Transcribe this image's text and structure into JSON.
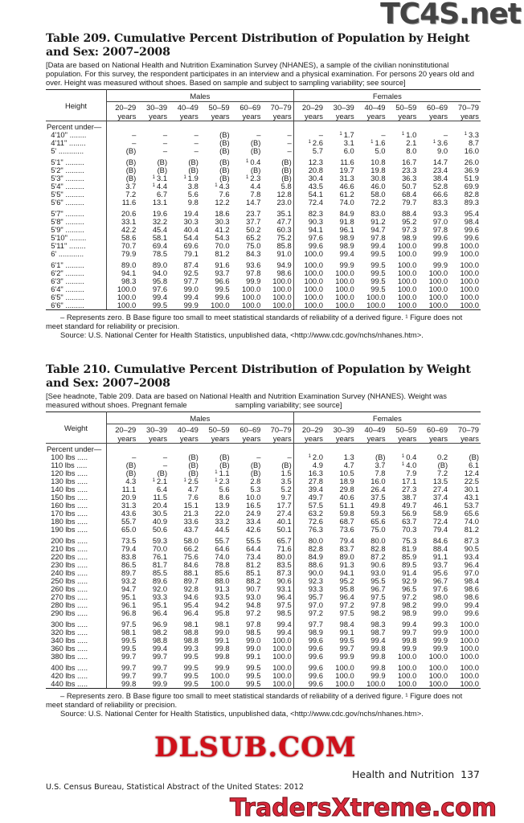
{
  "table209": {
    "title": "Table 209. Cumulative Percent Distribution of Population by Height and Sex: 2007–2008",
    "headnote": "[Data are based on National Health and Nutrition Examination Survey (NHANES), a sample of the civilian noninstitutional population. For this survey, the respondent participates in an interview and a physical examination. For persons 20 years old and over. Height was measured without shoes. Based on sample and subject to sampling variability; see source]",
    "stub_header": "Height",
    "sex_headers": [
      "Males",
      "Females"
    ],
    "age_headers": [
      "20–29",
      "30–39",
      "40–49",
      "50–59",
      "60–69",
      "70–79"
    ],
    "age_unit": "years",
    "subhead": "Percent under—",
    "groups": [
      [
        [
          "4'10\"",
          "–",
          "–",
          "–",
          "(B)",
          "–",
          "–",
          "–",
          "¹1.7",
          "–",
          "¹1.0",
          "–",
          "¹3.3"
        ],
        [
          "4'11\"",
          "–",
          "–",
          "–",
          "(B)",
          "(B)",
          "–",
          "¹2.6",
          "3.1",
          "¹1.6",
          "2.1",
          "¹3.6",
          "8.7"
        ],
        [
          "5'",
          "(B)",
          "–",
          "–",
          "(B)",
          "(B)",
          "–",
          "5.7",
          "6.0",
          "5.0",
          "8.0",
          "9.0",
          "16.0"
        ]
      ],
      [
        [
          "5'1\"",
          "(B)",
          "(B)",
          "(B)",
          "(B)",
          "¹0.4",
          "(B)",
          "12.3",
          "11.6",
          "10.8",
          "16.7",
          "14.7",
          "26.0"
        ],
        [
          "5'2\"",
          "(B)",
          "(B)",
          "(B)",
          "(B)",
          "(B)",
          "(B)",
          "20.8",
          "19.7",
          "19.8",
          "23.3",
          "23.4",
          "36.9"
        ],
        [
          "5'3\"",
          "(B)",
          "¹3.1",
          "¹1.9",
          "(B)",
          "¹2.3",
          "(B)",
          "30.4",
          "31.3",
          "30.8",
          "36.3",
          "38.4",
          "51.9"
        ],
        [
          "5'4\"",
          "3.7",
          "¹4.4",
          "3.8",
          "¹4.3",
          "4.4",
          "5.8",
          "43.5",
          "46.6",
          "46.0",
          "50.7",
          "52.8",
          "69.9"
        ],
        [
          "5'5\"",
          "7.2",
          "6.7",
          "5.6",
          "7.6",
          "7.8",
          "12.8",
          "54.1",
          "61.2",
          "58.0",
          "68.4",
          "66.6",
          "82.8"
        ],
        [
          "5'6\"",
          "11.6",
          "13.1",
          "9.8",
          "12.2",
          "14.7",
          "23.0",
          "72.4",
          "74.0",
          "72.2",
          "79.7",
          "83.3",
          "89.3"
        ]
      ],
      [
        [
          "5'7\"",
          "20.6",
          "19.6",
          "19.4",
          "18.6",
          "23.7",
          "35.1",
          "82.3",
          "84.9",
          "83.0",
          "88.4",
          "93.3",
          "95.4"
        ],
        [
          "5'8\"",
          "33.1",
          "32.2",
          "30.3",
          "30.3",
          "37.7",
          "47.7",
          "90.3",
          "91.8",
          "91.2",
          "95.2",
          "97.0",
          "98.4"
        ],
        [
          "5'9\"",
          "42.2",
          "45.4",
          "40.4",
          "41.2",
          "50.2",
          "60.3",
          "94.1",
          "96.1",
          "94.7",
          "97.3",
          "97.8",
          "99.6"
        ],
        [
          "5'10\"",
          "58.6",
          "58.1",
          "54.4",
          "54.3",
          "65.2",
          "75.2",
          "97.6",
          "98.9",
          "97.8",
          "98.9",
          "99.6",
          "99.6"
        ],
        [
          "5'11\"",
          "70.7",
          "69.4",
          "69.6",
          "70.0",
          "75.0",
          "85.8",
          "99.6",
          "98.9",
          "99.4",
          "100.0",
          "99.8",
          "100.0"
        ],
        [
          "6'",
          "79.9",
          "78.5",
          "79.1",
          "81.2",
          "84.3",
          "91.0",
          "100.0",
          "99.4",
          "99.5",
          "100.0",
          "99.9",
          "100.0"
        ]
      ],
      [
        [
          "6'1\"",
          "89.0",
          "89.0",
          "87.4",
          "91.6",
          "93.6",
          "94.9",
          "100.0",
          "99.9",
          "99.5",
          "100.0",
          "99.9",
          "100.0"
        ],
        [
          "6'2\"",
          "94.1",
          "94.0",
          "92.5",
          "93.7",
          "97.8",
          "98.6",
          "100.0",
          "100.0",
          "99.5",
          "100.0",
          "100.0",
          "100.0"
        ],
        [
          "6'3\"",
          "98.3",
          "95.8",
          "97.7",
          "96.6",
          "99.9",
          "100.0",
          "100.0",
          "100.0",
          "99.5",
          "100.0",
          "100.0",
          "100.0"
        ],
        [
          "6'4\"",
          "100.0",
          "97.6",
          "99.0",
          "99.5",
          "100.0",
          "100.0",
          "100.0",
          "100.0",
          "99.5",
          "100.0",
          "100.0",
          "100.0"
        ],
        [
          "6'5\"",
          "100.0",
          "99.4",
          "99.4",
          "99.6",
          "100.0",
          "100.0",
          "100.0",
          "100.0",
          "100.0",
          "100.0",
          "100.0",
          "100.0"
        ],
        [
          "6'6\"",
          "100.0",
          "99.5",
          "99.9",
          "100.0",
          "100.0",
          "100.0",
          "100.0",
          "100.0",
          "100.0",
          "100.0",
          "100.0",
          "100.0"
        ]
      ]
    ],
    "footnote": "– Represents zero. B Base figure too small to meet statistical standards of reliability of a derived figure. ¹ Figure does not meet standard for reliability or precision.",
    "source": "Source: U.S. National Center for Health Statistics, unpublished data, <http://www.cdc.gov/nchs/nhanes.htm>."
  },
  "table210": {
    "title": "Table 210. Cumulative Percent Distribution of Population by Weight and Sex: 2007–2008",
    "headnote_a": "[See headnote, Table 209. Data are based on National Health and Nutrition Examination Survey (NHANES). Weight was measured without shoes. Pregnant female",
    "headnote_b": "sampling variability; see source]",
    "stub_header": "Weight",
    "sex_headers": [
      "Males",
      "Females"
    ],
    "age_headers": [
      "20–29",
      "30–39",
      "40–49",
      "50–59",
      "60–69",
      "70–79"
    ],
    "age_unit": "years",
    "subhead": "Percent under—",
    "groups": [
      [
        [
          "100 lbs",
          "–",
          "–",
          "(B)",
          "(B)",
          "–",
          "–",
          "¹2.0",
          "1.3",
          "(B)",
          "¹0.4",
          "0.2",
          "(B)"
        ],
        [
          "110 lbs",
          "(B)",
          "–",
          "(B)",
          "(B)",
          "(B)",
          "(B)",
          "4.9",
          "4.7",
          "3.7",
          "¹4.0",
          "(B)",
          "6.1"
        ],
        [
          "120 lbs",
          "(B)",
          "(B)",
          "(B)",
          "¹1.1",
          "(B)",
          "1.5",
          "16.3",
          "10.5",
          "7.8",
          "7.9",
          "7.2",
          "12.4"
        ],
        [
          "130 lbs",
          "4.3",
          "¹2.1",
          "¹2.5",
          "¹2.3",
          "2.8",
          "3.5",
          "27.8",
          "18.9",
          "16.0",
          "17.1",
          "13.5",
          "22.5"
        ],
        [
          "140 lbs",
          "11.1",
          "6.4",
          "4.7",
          "5.6",
          "5.3",
          "5.2",
          "39.4",
          "29.8",
          "26.4",
          "27.3",
          "27.4",
          "30.1"
        ],
        [
          "150 lbs",
          "20.9",
          "11.5",
          "7.6",
          "8.6",
          "10.0",
          "9.7",
          "49.7",
          "40.6",
          "37.5",
          "38.7",
          "37.4",
          "43.1"
        ],
        [
          "160 lbs",
          "31.3",
          "20.4",
          "15.1",
          "13.9",
          "16.5",
          "17.7",
          "57.5",
          "51.1",
          "49.8",
          "49.7",
          "46.1",
          "53.7"
        ],
        [
          "170 lbs",
          "43.6",
          "30.5",
          "21.3",
          "22.0",
          "24.9",
          "27.4",
          "63.2",
          "59.8",
          "59.3",
          "56.9",
          "58.9",
          "65.6"
        ],
        [
          "180 lbs",
          "55.7",
          "40.9",
          "33.6",
          "33.2",
          "33.4",
          "40.1",
          "72.6",
          "68.7",
          "65.6",
          "63.7",
          "72.4",
          "74.0"
        ],
        [
          "190 lbs",
          "65.0",
          "50.6",
          "43.7",
          "44.5",
          "42.6",
          "50.1",
          "76.3",
          "73.6",
          "75.0",
          "70.3",
          "79.4",
          "81.2"
        ]
      ],
      [
        [
          "200 lbs",
          "73.5",
          "59.3",
          "58.0",
          "55.7",
          "55.5",
          "65.7",
          "80.0",
          "79.4",
          "80.0",
          "75.3",
          "84.6",
          "87.3"
        ],
        [
          "210 lbs",
          "79.4",
          "70.0",
          "66.2",
          "64.6",
          "64.4",
          "71.6",
          "82.8",
          "83.7",
          "82.8",
          "81.9",
          "88.4",
          "90.5"
        ],
        [
          "220 lbs",
          "83.8",
          "76.1",
          "75.6",
          "74.0",
          "73.4",
          "80.0",
          "84.9",
          "89.0",
          "87.2",
          "85.9",
          "91.1",
          "93.4"
        ],
        [
          "230 lbs",
          "86.5",
          "81.7",
          "84.6",
          "78.8",
          "81.2",
          "83.5",
          "88.6",
          "91.3",
          "90.6",
          "89.5",
          "93.7",
          "96.4"
        ],
        [
          "240 lbs",
          "89.7",
          "85.5",
          "88.1",
          "85.6",
          "85.1",
          "87.3",
          "90.0",
          "94.1",
          "93.0",
          "91.4",
          "95.6",
          "97.0"
        ],
        [
          "250 lbs",
          "93.2",
          "89.6",
          "89.7",
          "88.0",
          "88.2",
          "90.6",
          "92.3",
          "95.2",
          "95.5",
          "92.9",
          "96.7",
          "98.4"
        ],
        [
          "260 lbs",
          "94.7",
          "92.0",
          "92.8",
          "91.3",
          "90.7",
          "93.1",
          "93.3",
          "95.8",
          "96.7",
          "96.5",
          "97.6",
          "98.6"
        ],
        [
          "270 lbs",
          "95.1",
          "93.3",
          "94.6",
          "93.5",
          "93.0",
          "96.4",
          "95.7",
          "96.4",
          "97.5",
          "97.2",
          "98.0",
          "98.6"
        ],
        [
          "280 lbs",
          "96.1",
          "95.1",
          "95.4",
          "94.2",
          "94.8",
          "97.5",
          "97.0",
          "97.2",
          "97.8",
          "98.2",
          "99.0",
          "99.4"
        ],
        [
          "290 lbs",
          "96.8",
          "96.4",
          "96.4",
          "95.8",
          "97.2",
          "98.5",
          "97.2",
          "97.5",
          "98.2",
          "98.9",
          "99.0",
          "99.6"
        ]
      ],
      [
        [
          "300 lbs",
          "97.5",
          "96.9",
          "98.1",
          "98.1",
          "97.8",
          "99.4",
          "97.7",
          "98.4",
          "98.3",
          "99.4",
          "99.3",
          "100.0"
        ],
        [
          "320 lbs",
          "98.1",
          "98.2",
          "98.8",
          "99.0",
          "98.5",
          "99.4",
          "98.9",
          "99.1",
          "98.7",
          "99.7",
          "99.9",
          "100.0"
        ],
        [
          "340 lbs",
          "99.5",
          "98.8",
          "98.8",
          "99.1",
          "99.0",
          "100.0",
          "99.6",
          "99.5",
          "99.4",
          "99.8",
          "99.9",
          "100.0"
        ],
        [
          "360 lbs",
          "99.5",
          "99.4",
          "99.3",
          "99.8",
          "99.0",
          "100.0",
          "99.6",
          "99.7",
          "99.8",
          "99.9",
          "99.9",
          "100.0"
        ],
        [
          "380 lbs",
          "99.7",
          "99.7",
          "99.5",
          "99.8",
          "99.1",
          "100.0",
          "99.6",
          "99.9",
          "99.8",
          "100.0",
          "100.0",
          "100.0"
        ]
      ],
      [
        [
          "400 lbs",
          "99.7",
          "99.7",
          "99.5",
          "99.9",
          "99.5",
          "100.0",
          "99.6",
          "100.0",
          "99.8",
          "100.0",
          "100.0",
          "100.0"
        ],
        [
          "420 lbs",
          "99.7",
          "99.7",
          "99.5",
          "100.0",
          "99.5",
          "100.0",
          "99.6",
          "100.0",
          "99.9",
          "100.0",
          "100.0",
          "100.0"
        ],
        [
          "440 lbs",
          "99.8",
          "99.9",
          "99.5",
          "100.0",
          "99.5",
          "100.0",
          "99.6",
          "100.0",
          "100.0",
          "100.0",
          "100.0",
          "100.0"
        ]
      ]
    ],
    "footnote": "– Represents zero. B Base figure too small to meet statistical standards of reliability of a derived figure. ¹ Figure does not meet standard of reliability or precision.",
    "source": "Source: U.S. National Center for Health Statistics, unpublished data, <http://www.cdc.gov/nchs/nhanes.htm>."
  },
  "page_footer": {
    "section": "Health and Nutrition",
    "page_number": "137",
    "publication": "U.S. Census Bureau, Statistical Abstract of the United States: 2012"
  },
  "watermarks": {
    "top": "TC4S.net",
    "middle": "DLSUB.COM",
    "bottom": "TradersXtreme.com",
    "middle_color": "#d0101a",
    "bottom_color": "#d8283a"
  }
}
